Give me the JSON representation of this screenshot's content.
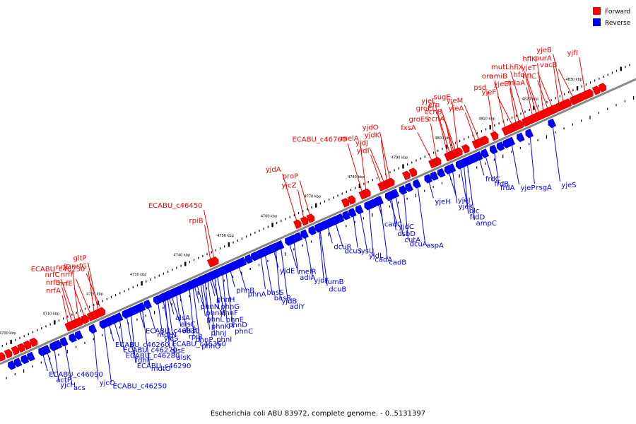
{
  "title": "Escherichia coli ABU 83972, complete genome. - 0..5131397",
  "legend": [
    {
      "label": "Forward",
      "color": "#ff0000"
    },
    {
      "label": "Reverse",
      "color": "#0000ff"
    }
  ],
  "colors": {
    "forward": "#ff0000",
    "reverse": "#0000ff",
    "backbone": "#888888",
    "leader": "#000000"
  },
  "axis": {
    "unit": "kbp",
    "start_kbp": 4696,
    "end_kbp": 4842,
    "ticks": [
      "4700 kbp",
      "4710 kbp",
      "4720 kbp",
      "4730 kbp",
      "4740 kbp",
      "4750 kbp",
      "4760 kbp",
      "4770 kbp",
      "4780 kbp",
      "4790 kbp",
      "4800 kbp",
      "4810 kbp",
      "4820 kbp",
      "4830 kbp"
    ]
  },
  "forward_genes": [
    {
      "name": "nrfA",
      "kbp": 4712.5
    },
    {
      "name": "nrfB",
      "kbp": 4713.4
    },
    {
      "name": "nrfC",
      "kbp": 4714.2
    },
    {
      "name": "nrfD",
      "kbp": 4714.9
    },
    {
      "name": "nrfE",
      "kbp": 4716.2
    },
    {
      "name": "nrfF",
      "kbp": 4717.6
    },
    {
      "name": "nrfG",
      "kbp": 4718.5
    },
    {
      "name": "gltP",
      "kbp": 4719.4
    },
    {
      "name": "ECABU_c46230",
      "kbp": 4720.0
    },
    {
      "name": "rpiB",
      "kbp": 4745.2
    },
    {
      "name": "ECABU_c46450",
      "kbp": 4746.0
    },
    {
      "name": "yjdA",
      "kbp": 4765.0
    },
    {
      "name": "yjcZ",
      "kbp": 4766.6
    },
    {
      "name": "proP",
      "kbp": 4768.0
    },
    {
      "name": "ECABU_c46760",
      "kbp": 4780.0
    },
    {
      "name": "melA",
      "kbp": 4780.9
    },
    {
      "name": "yjdI",
      "kbp": 4784.3
    },
    {
      "name": "yjdJ",
      "kbp": 4785.0
    },
    {
      "name": "yjdK",
      "kbp": 4785.7
    },
    {
      "name": "yjdO",
      "kbp": 4786.4
    },
    {
      "name": "fxsA",
      "kbp": 4796.0
    },
    {
      "name": "groES",
      "kbp": 4797.1
    },
    {
      "name": "groEL",
      "kbp": 4799.6
    },
    {
      "name": "yjeI",
      "kbp": 4800.1
    },
    {
      "name": "ecnA",
      "kbp": 4800.6
    },
    {
      "name": "ecnB",
      "kbp": 4801.0
    },
    {
      "name": "efp",
      "kbp": 4801.4
    },
    {
      "name": "sugE",
      "kbp": 4802.0
    },
    {
      "name": "yjeA",
      "kbp": 4806.0
    },
    {
      "name": "yjeM",
      "kbp": 4806.8
    },
    {
      "name": "psd",
      "kbp": 4810.2
    },
    {
      "name": "orn",
      "kbp": 4812.8
    },
    {
      "name": "yjeF",
      "kbp": 4814.4
    },
    {
      "name": "yjeE",
      "kbp": 4815.3
    },
    {
      "name": "amiB",
      "kbp": 4816.0
    },
    {
      "name": "mutL",
      "kbp": 4817.4
    },
    {
      "name": "miaA",
      "kbp": 4819.1
    },
    {
      "name": "hfq",
      "kbp": 4820.0
    },
    {
      "name": "hflX",
      "kbp": 4820.6
    },
    {
      "name": "hflK",
      "kbp": 4821.6
    },
    {
      "name": "hflC",
      "kbp": 4822.6
    },
    {
      "name": "yjeT",
      "kbp": 4823.6
    },
    {
      "name": "purA",
      "kbp": 4825.2
    },
    {
      "name": "yjeB",
      "kbp": 4826.2
    },
    {
      "name": "vacB",
      "kbp": 4828.4
    },
    {
      "name": "yjfI",
      "kbp": 4831.2
    }
  ],
  "reverse_genes": [
    {
      "name": "ECABU_c46090",
      "kbp": 4705.0
    },
    {
      "name": "actP",
      "kbp": 4706.0
    },
    {
      "name": "yjcH",
      "kbp": 4707.6
    },
    {
      "name": "acs",
      "kbp": 4710.0
    },
    {
      "name": "yjcO",
      "kbp": 4716.6
    },
    {
      "name": "ECABU_c46250",
      "kbp": 4719.0
    },
    {
      "name": "ECABU_c46260",
      "kbp": 4720.2
    },
    {
      "name": "ECABU_c46270",
      "kbp": 4721.4
    },
    {
      "name": "ECABU_c46280",
      "kbp": 4722.6
    },
    {
      "name": "fdhF",
      "kbp": 4724.2
    },
    {
      "name": "ECABU_c46290",
      "kbp": 4725.2
    },
    {
      "name": "mdtO",
      "kbp": 4727.8
    },
    {
      "name": "ECABU_c46330",
      "kbp": 4727.2
    },
    {
      "name": "mdtN",
      "kbp": 4729.2
    },
    {
      "name": "yjcS",
      "kbp": 4731.4
    },
    {
      "name": "ECABU_c46360",
      "kbp": 4732.6
    },
    {
      "name": "alsE",
      "kbp": 4733.0
    },
    {
      "name": "alsK",
      "kbp": 4733.6
    },
    {
      "name": "alsA",
      "kbp": 4734.0
    },
    {
      "name": "alsC",
      "kbp": 4734.6
    },
    {
      "name": "alsB",
      "kbp": 4735.6
    },
    {
      "name": "rpiR",
      "kbp": 4736.4
    },
    {
      "name": "phnP",
      "kbp": 4738.6
    },
    {
      "name": "phnO",
      "kbp": 4739.4
    },
    {
      "name": "phnN",
      "kbp": 4739.8
    },
    {
      "name": "phnM",
      "kbp": 4740.4
    },
    {
      "name": "phnL",
      "kbp": 4741.2
    },
    {
      "name": "phnK",
      "kbp": 4741.6
    },
    {
      "name": "phnJ",
      "kbp": 4742.2
    },
    {
      "name": "phnI",
      "kbp": 4742.8
    },
    {
      "name": "phnH",
      "kbp": 4743.4
    },
    {
      "name": "phnG",
      "kbp": 4743.8
    },
    {
      "name": "phnF",
      "kbp": 4744.4
    },
    {
      "name": "phnE",
      "kbp": 4745.0
    },
    {
      "name": "phnD",
      "kbp": 4746.2
    },
    {
      "name": "phnC",
      "kbp": 4747.0
    },
    {
      "name": "phnB",
      "kbp": 4748.0
    },
    {
      "name": "phnA",
      "kbp": 4750.0
    },
    {
      "name": "basS",
      "kbp": 4755.0
    },
    {
      "name": "basR",
      "kbp": 4756.0
    },
    {
      "name": "yjdB",
      "kbp": 4758.4
    },
    {
      "name": "adiY",
      "kbp": 4759.6
    },
    {
      "name": "yjdE",
      "kbp": 4758.0
    },
    {
      "name": "melR",
      "kbp": 4761.6
    },
    {
      "name": "adiA",
      "kbp": 4762.6
    },
    {
      "name": "yjdF",
      "kbp": 4765.2
    },
    {
      "name": "fumB",
      "kbp": 4768.4
    },
    {
      "name": "dcuB",
      "kbp": 4768.6
    },
    {
      "name": "dcuR",
      "kbp": 4770.4
    },
    {
      "name": "dcuS",
      "kbp": 4772.2
    },
    {
      "name": "lysU",
      "kbp": 4776.2
    },
    {
      "name": "yjdL",
      "kbp": 4777.8
    },
    {
      "name": "cadA",
      "kbp": 4779.8
    },
    {
      "name": "cadB",
      "kbp": 4782.4
    },
    {
      "name": "cadC",
      "kbp": 4782.0
    },
    {
      "name": "yjdC",
      "kbp": 4784.6
    },
    {
      "name": "dsbD",
      "kbp": 4785.0
    },
    {
      "name": "cutA",
      "kbp": 4786.0
    },
    {
      "name": "dcuA",
      "kbp": 4787.8
    },
    {
      "name": "aspA",
      "kbp": 4791.0
    },
    {
      "name": "yjeH",
      "kbp": 4793.6
    },
    {
      "name": "yjeJ",
      "kbp": 4798.2
    },
    {
      "name": "yjeK",
      "kbp": 4799.0
    },
    {
      "name": "blc",
      "kbp": 4800.8
    },
    {
      "name": "frdD",
      "kbp": 4801.6
    },
    {
      "name": "ampC",
      "kbp": 4802.4
    },
    {
      "name": "frdC",
      "kbp": 4805.2
    },
    {
      "name": "frdB",
      "kbp": 4806.6
    },
    {
      "name": "frdA",
      "kbp": 4808.6
    },
    {
      "name": "yjeP",
      "kbp": 4812.6
    },
    {
      "name": "rsgA",
      "kbp": 4816.8
    },
    {
      "name": "yjeS",
      "kbp": 4822.0
    }
  ]
}
